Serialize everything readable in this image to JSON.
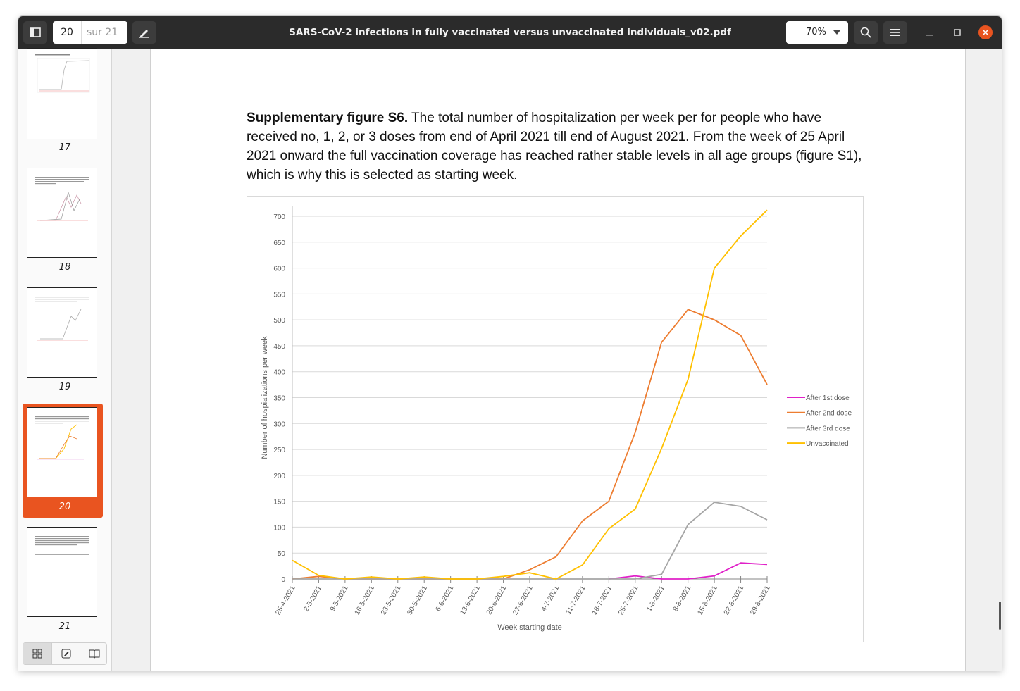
{
  "toolbar": {
    "current_page": "20",
    "total_pages": "sur 21",
    "title": "SARS-CoV-2 infections in fully vaccinated versus unvaccinated individuals_v02.pdf",
    "zoom": "70%"
  },
  "sidebar": {
    "thumbnails": [
      {
        "label": "17"
      },
      {
        "label": "18"
      },
      {
        "label": "19"
      },
      {
        "label": "20",
        "selected": true
      },
      {
        "label": "21"
      }
    ],
    "selected_color": "#e95420"
  },
  "document": {
    "caption_bold": "Supplementary figure S6.",
    "caption_text": " The total number of hospitalization per week per for people who have received no, 1, 2, or 3 doses from end of April 2021 till end of August 2021. From the week of 25 April 2021 onward the full vaccination coverage has reached rather stable levels in all age groups (figure S1), which is why this is selected as starting week."
  },
  "chart_data": {
    "type": "line",
    "title": "",
    "xlabel": "Week starting date",
    "ylabel": "Number of hospializations per week",
    "ylim": [
      0,
      700
    ],
    "yticks": [
      0,
      50,
      100,
      150,
      200,
      250,
      300,
      350,
      400,
      450,
      500,
      550,
      600,
      650,
      700
    ],
    "grid": true,
    "legend_position": "right",
    "categories": [
      "25-4-2021",
      "2-5-2021",
      "9-5-2021",
      "16-5-2021",
      "23-5-2021",
      "30-5-2021",
      "6-6-2021",
      "13-6-2021",
      "20-6-2021",
      "27-6-2021",
      "4-7-2021",
      "11-7-2021",
      "18-7-2021",
      "25-7-2021",
      "1-8-2021",
      "8-8-2021",
      "15-8-2021",
      "22-8-2021",
      "29-8-2021"
    ],
    "series": [
      {
        "name": "After 1st dose",
        "color": "#e020c8",
        "values": [
          null,
          null,
          null,
          null,
          null,
          null,
          null,
          null,
          null,
          null,
          null,
          null,
          0,
          6,
          0,
          0,
          6,
          31,
          28
        ]
      },
      {
        "name": "After 2nd dose",
        "color": "#ed7d31",
        "values": [
          0,
          5,
          0,
          0,
          0,
          0,
          0,
          0,
          0,
          18,
          43,
          112,
          150,
          283,
          457,
          520,
          500,
          470,
          375
        ]
      },
      {
        "name": "After 3rd dose",
        "color": "#a5a5a5",
        "values": [
          0,
          0,
          0,
          0,
          0,
          0,
          0,
          0,
          0,
          0,
          0,
          0,
          0,
          0,
          9,
          105,
          148,
          140,
          114
        ]
      },
      {
        "name": "Unvaccinated",
        "color": "#ffc000",
        "values": [
          36,
          7,
          0,
          4,
          0,
          4,
          0,
          0,
          5,
          12,
          0,
          27,
          97,
          135,
          252,
          385,
          600,
          662,
          712
        ]
      }
    ]
  }
}
